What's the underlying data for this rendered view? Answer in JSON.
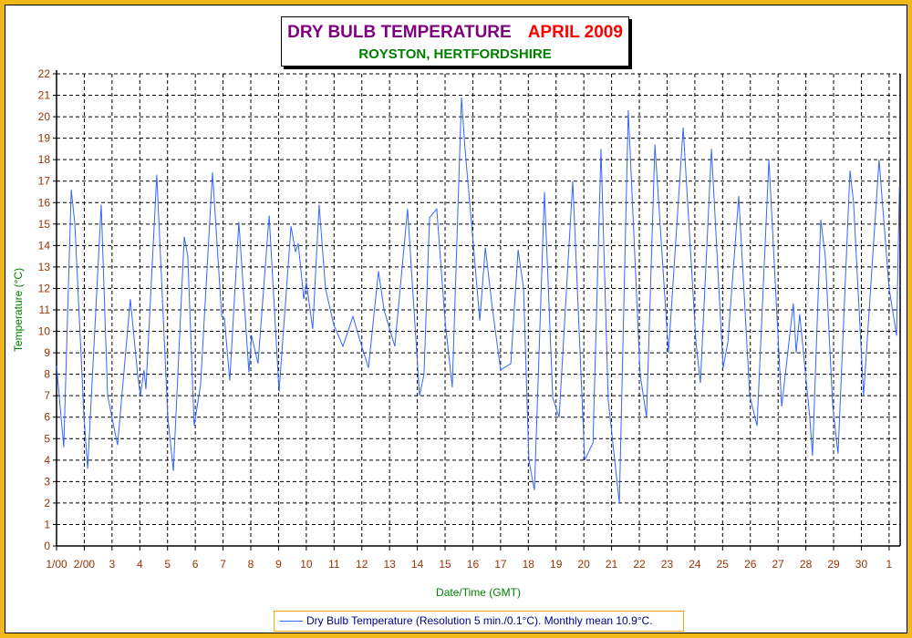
{
  "title": {
    "main": "DRY BULB TEMPERATURE",
    "period": "APRIL 2009",
    "location": "ROYSTON, HERTFORDSHIRE"
  },
  "colors": {
    "border": "#F0B818",
    "line": "#3366FF",
    "tick": "#993300",
    "axis_title": "#008000",
    "title_main": "#800080",
    "title_period": "#FF0000"
  },
  "chart_data": {
    "type": "line",
    "title": "DRY BULB TEMPERATURE APRIL 2009",
    "xlabel": "Date/Time (GMT)",
    "ylabel": "Temperature (°C)",
    "ylim": [
      0,
      22
    ],
    "xlim_days_elapsed": [
      0,
      30.4
    ],
    "grid": true,
    "legend_position": "bottom-center",
    "y_ticks": [
      "0",
      "1",
      "2",
      "3",
      "4",
      "5",
      "6",
      "7",
      "8",
      "9",
      "10",
      "11",
      "12",
      "13",
      "14",
      "15",
      "16",
      "17",
      "18",
      "19",
      "20",
      "21",
      "22"
    ],
    "x_ticks": [
      "1/00",
      "2/00",
      "3",
      "4",
      "5",
      "6",
      "7",
      "8",
      "9",
      "10",
      "11",
      "12",
      "13",
      "14",
      "15",
      "16",
      "17",
      "18",
      "19",
      "20",
      "21",
      "22",
      "23",
      "24",
      "25",
      "26",
      "27",
      "28",
      "29",
      "30",
      "1"
    ],
    "series": [
      {
        "name": "Dry Bulb Temperature (Resolution 5 min./0.1°C). Monthly mean 10.9°C.",
        "points_days_elapsed_temp": [
          [
            0,
            8.4
          ],
          [
            0.26,
            4.6
          ],
          [
            0.53,
            16.6
          ],
          [
            0.66,
            15
          ],
          [
            0.99,
            6
          ],
          [
            1.12,
            3.6
          ],
          [
            1.61,
            15.9
          ],
          [
            1.84,
            7
          ],
          [
            2.2,
            4.7
          ],
          [
            2.66,
            11.5
          ],
          [
            2.92,
            8
          ],
          [
            3.02,
            7
          ],
          [
            3.15,
            8.2
          ],
          [
            3.22,
            7.3
          ],
          [
            3.61,
            17.3
          ],
          [
            4.01,
            6
          ],
          [
            4.21,
            3.5
          ],
          [
            4.6,
            14.4
          ],
          [
            4.73,
            13.5
          ],
          [
            4.96,
            5.6
          ],
          [
            5.19,
            7.5
          ],
          [
            5.62,
            17.4
          ],
          [
            5.95,
            10.7
          ],
          [
            6.05,
            10.6
          ],
          [
            6.24,
            7.7
          ],
          [
            6.57,
            15.1
          ],
          [
            6.93,
            8.1
          ],
          [
            7.03,
            9.8
          ],
          [
            7.26,
            8.5
          ],
          [
            7.66,
            15.4
          ],
          [
            8.02,
            7.2
          ],
          [
            8.45,
            14.9
          ],
          [
            8.61,
            13.7
          ],
          [
            8.71,
            14.1
          ],
          [
            8.91,
            11.5
          ],
          [
            9.0,
            12.3
          ],
          [
            9.23,
            10.1
          ],
          [
            9.46,
            15.9
          ],
          [
            9.69,
            12
          ],
          [
            9.99,
            10.3
          ],
          [
            10.32,
            9.3
          ],
          [
            10.68,
            10.7
          ],
          [
            10.88,
            9.8
          ],
          [
            11.24,
            8.3
          ],
          [
            11.6,
            12.8
          ],
          [
            11.8,
            11
          ],
          [
            12.19,
            9.3
          ],
          [
            12.65,
            15.7
          ],
          [
            13.08,
            7
          ],
          [
            13.24,
            8
          ],
          [
            13.44,
            15.3
          ],
          [
            13.7,
            15.7
          ],
          [
            14.0,
            10.5
          ],
          [
            14.26,
            7.4
          ],
          [
            14.59,
            20.9
          ],
          [
            14.72,
            18.5
          ],
          [
            14.99,
            14.5
          ],
          [
            15.25,
            10.5
          ],
          [
            15.45,
            13.9
          ],
          [
            15.71,
            11
          ],
          [
            16.0,
            8.2
          ],
          [
            16.37,
            8.5
          ],
          [
            16.63,
            13.8
          ],
          [
            16.83,
            12
          ],
          [
            17.02,
            4
          ],
          [
            17.22,
            2.6
          ],
          [
            17.58,
            16.5
          ],
          [
            17.88,
            6.9
          ],
          [
            18.11,
            6
          ],
          [
            18.6,
            17
          ],
          [
            19.03,
            4
          ],
          [
            19.33,
            4.8
          ],
          [
            19.62,
            18.5
          ],
          [
            19.88,
            6.8
          ],
          [
            20.28,
            2
          ],
          [
            20.6,
            20.3
          ],
          [
            21.03,
            8
          ],
          [
            21.26,
            6
          ],
          [
            21.56,
            18.7
          ],
          [
            22.05,
            9
          ],
          [
            22.58,
            19.5
          ],
          [
            23.04,
            9.5
          ],
          [
            23.2,
            7.6
          ],
          [
            23.6,
            18.5
          ],
          [
            24.02,
            8.3
          ],
          [
            24.19,
            9.5
          ],
          [
            24.58,
            16.3
          ],
          [
            24.98,
            7
          ],
          [
            25.24,
            5.6
          ],
          [
            25.67,
            18
          ],
          [
            26.13,
            6.5
          ],
          [
            26.55,
            11.3
          ],
          [
            26.65,
            9
          ],
          [
            26.78,
            10.8
          ],
          [
            27.14,
            6
          ],
          [
            27.24,
            4.2
          ],
          [
            27.54,
            15.2
          ],
          [
            27.7,
            13.5
          ],
          [
            27.97,
            6.5
          ],
          [
            28.16,
            4.3
          ],
          [
            28.59,
            17.5
          ],
          [
            28.72,
            16
          ],
          [
            29.08,
            7
          ],
          [
            29.64,
            18
          ],
          [
            30.0,
            12
          ],
          [
            30.27,
            9.8
          ],
          [
            30.37,
            16.7
          ]
        ]
      }
    ]
  }
}
